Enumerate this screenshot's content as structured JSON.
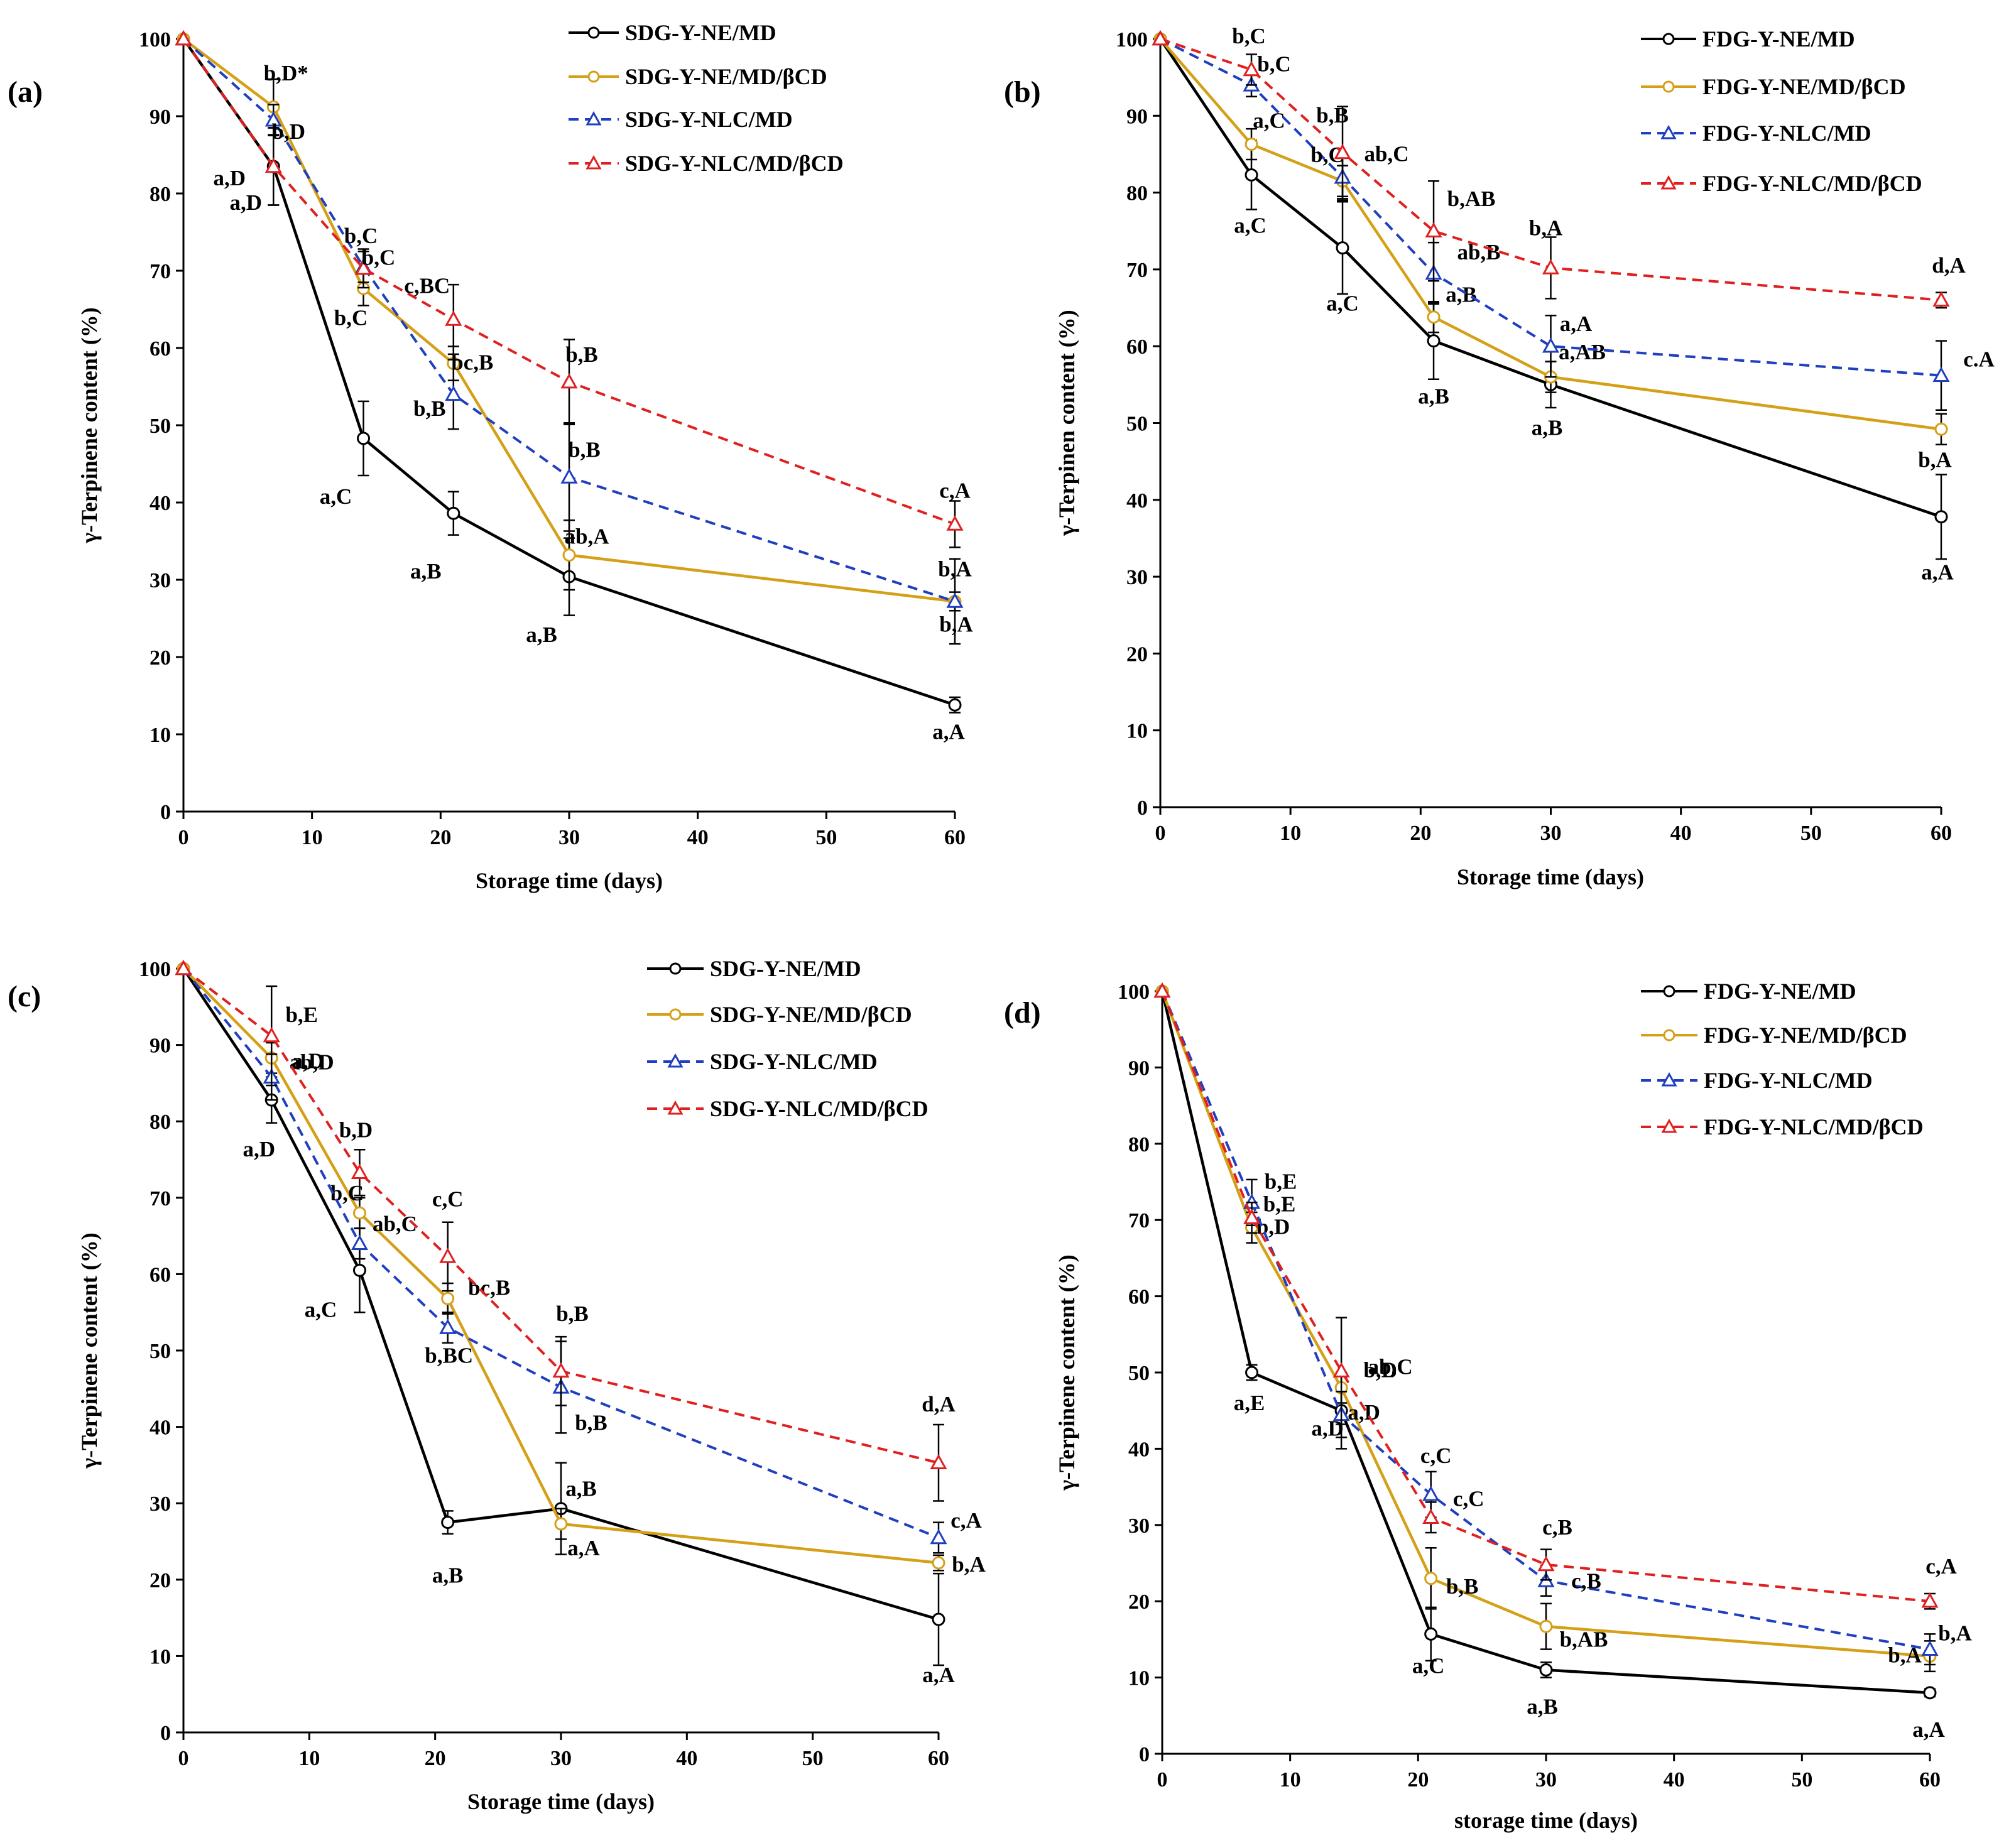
{
  "figure": {
    "chart_data": [
      {
        "type": "line",
        "panel_label": "(a)",
        "xlabel": "Storage time (days)",
        "ylabel": "γ-Terpinene content (%)",
        "xlim": [
          0,
          60
        ],
        "ylim": [
          0,
          100
        ],
        "xticks": [
          "0",
          "10",
          "20",
          "30",
          "40",
          "50",
          "60"
        ],
        "yticks": [
          "0",
          "10",
          "20",
          "30",
          "40",
          "50",
          "60",
          "70",
          "80",
          "90",
          "100"
        ],
        "x": [
          0,
          7,
          14,
          21,
          30,
          60
        ],
        "series": [
          {
            "name": "SDG-Y-NE/MD",
            "color": "#000000",
            "dash": false,
            "marker": "circle",
            "values": [
              100,
              83.5,
              48.3,
              38.6,
              30.4,
              13.8
            ],
            "errors": [
              0,
              5,
              4.8,
              2.8,
              5,
              1
            ],
            "labels": [
              "",
              "a,D",
              "a,C",
              "a,B",
              "a,B",
              "a,A"
            ]
          },
          {
            "name": "SDG-Y-NE/MD/βCD",
            "color": "#d4a017",
            "dash": false,
            "marker": "circle",
            "values": [
              100,
              91.2,
              67.7,
              58,
              33.2,
              27.2
            ],
            "errors": [
              0,
              3.6,
              2.2,
              2.2,
              4.5,
              1.2
            ],
            "labels": [
              "",
              "b,D*",
              "b,C",
              "bc,B",
              "ab,A",
              "b,A"
            ]
          },
          {
            "name": "SDG-Y-NLC/MD",
            "color": "#1f3fbf",
            "dash": true,
            "marker": "triangle",
            "values": [
              100,
              89.5,
              70.5,
              54,
              43.3,
              27.2
            ],
            "errors": [
              0,
              2,
              2,
              4.5,
              7,
              5.5
            ],
            "labels": [
              "",
              "b,D",
              "b,C",
              "b,B",
              "b,B",
              "b,A"
            ]
          },
          {
            "name": "SDG-Y-NLC/MD/βCD",
            "color": "#e02020",
            "dash": true,
            "marker": "triangle",
            "values": [
              100,
              83.5,
              70.3,
              63.7,
              55.6,
              37.2
            ],
            "errors": [
              0,
              5,
              2.5,
              4.5,
              5.5,
              3
            ],
            "labels": [
              "",
              "a,D",
              "b,C",
              "c,BC",
              "b,B",
              "c,A"
            ]
          }
        ]
      },
      {
        "type": "line",
        "panel_label": "(b)",
        "xlabel": "Storage time (days)",
        "ylabel": "γ-Terpinen content (%)",
        "xlim": [
          0,
          60
        ],
        "ylim": [
          0,
          100
        ],
        "xticks": [
          "0",
          "10",
          "20",
          "30",
          "40",
          "50",
          "60"
        ],
        "yticks": [
          "0",
          "10",
          "20",
          "30",
          "40",
          "50",
          "60",
          "70",
          "80",
          "90",
          "100"
        ],
        "x": [
          0,
          7,
          14,
          21,
          30,
          60
        ],
        "series": [
          {
            "name": "FDG-Y-NE/MD",
            "color": "#000000",
            "dash": false,
            "marker": "circle",
            "values": [
              100,
              82.3,
              72.8,
              60.7,
              55,
              37.8
            ],
            "errors": [
              0,
              4.5,
              6,
              5,
              3,
              5.5
            ],
            "labels": [
              "",
              "a,C",
              "a,C",
              "a,B",
              "a,B",
              "a,A"
            ]
          },
          {
            "name": "FDG-Y-NE/MD/βCD",
            "color": "#d4a017",
            "dash": false,
            "marker": "circle",
            "values": [
              100,
              86.3,
              81.5,
              63.8,
              56,
              49.2
            ],
            "errors": [
              0,
              2,
              2,
              2,
              2,
              2
            ],
            "labels": [
              "",
              "a,C",
              "ab,C",
              "a,B",
              "a,AB",
              "b,A"
            ]
          },
          {
            "name": "FDG-Y-NLC/MD",
            "color": "#1f3fbf",
            "dash": true,
            "marker": "triangle",
            "values": [
              100,
              94,
              82,
              69.5,
              60,
              56.2
            ],
            "errors": [
              0,
              1.5,
              3,
              4,
              4,
              4.5
            ],
            "labels": [
              "",
              "b,C",
              "b,C",
              "ab,B",
              "a,A",
              "c.A"
            ]
          },
          {
            "name": "FDG-Y-NLC/MD/βCD",
            "color": "#e02020",
            "dash": true,
            "marker": "triangle",
            "values": [
              100,
              96,
              85.2,
              75,
              70.2,
              66
            ],
            "errors": [
              0,
              2,
              6,
              6.5,
              4,
              1
            ],
            "labels": [
              "",
              "b,C",
              "b,B",
              "b,AB",
              "b,A",
              "d,A"
            ]
          }
        ]
      },
      {
        "type": "line",
        "panel_label": "(c)",
        "xlabel": "Storage time (days)",
        "ylabel": "γ-Terpinene content (%)",
        "xlim": [
          0,
          60
        ],
        "ylim": [
          0,
          100
        ],
        "xticks": [
          "0",
          "10",
          "20",
          "30",
          "40",
          "50",
          "60"
        ],
        "yticks": [
          "0",
          "10",
          "20",
          "30",
          "40",
          "50",
          "60",
          "70",
          "80",
          "90",
          "100"
        ],
        "x": [
          0,
          7,
          14,
          21,
          30,
          60
        ],
        "series": [
          {
            "name": "SDG-Y-NE/MD",
            "color": "#000000",
            "dash": false,
            "marker": "circle",
            "values": [
              100,
              82.8,
              60.5,
              27.5,
              29.3,
              14.8
            ],
            "errors": [
              0,
              3,
              5.5,
              1.5,
              6,
              6
            ],
            "labels": [
              "",
              "a,D",
              "a,C",
              "a,B",
              "a,B",
              "a,A"
            ]
          },
          {
            "name": "SDG-Y-NE/MD/βCD",
            "color": "#d4a017",
            "dash": false,
            "marker": "circle",
            "values": [
              100,
              88.3,
              68,
              56.8,
              27.3,
              22.2
            ],
            "errors": [
              0,
              2,
              2,
              2,
              2,
              1
            ],
            "labels": [
              "",
              "ab,D",
              "b,C",
              "bc,B",
              "a,A",
              "b,A"
            ]
          },
          {
            "name": "SDG-Y-NLC/MD",
            "color": "#1f3fbf",
            "dash": true,
            "marker": "triangle",
            "values": [
              100,
              85.8,
              64,
              53,
              45.2,
              25.5
            ],
            "errors": [
              0,
              3,
              2,
              2,
              6,
              2
            ],
            "labels": [
              "",
              "a,D",
              "ab,C",
              "b,BC",
              "b,B",
              "c,A"
            ]
          },
          {
            "name": "SDG-Y-NLC/MD/βCD",
            "color": "#e02020",
            "dash": true,
            "marker": "triangle",
            "values": [
              100,
              91.2,
              73.3,
              62.3,
              47.3,
              35.3
            ],
            "errors": [
              0,
              6.5,
              3,
              4.5,
              4.5,
              5
            ],
            "labels": [
              "",
              "b,E",
              "b,D",
              "c,C",
              "b,B",
              "d,A"
            ]
          }
        ]
      },
      {
        "type": "line",
        "panel_label": "(d)",
        "xlabel": "storage time (days)",
        "ylabel": "γ-Terpinene content (%)",
        "xlim": [
          0,
          60
        ],
        "ylim": [
          0,
          100
        ],
        "xticks": [
          "0",
          "10",
          "20",
          "30",
          "40",
          "50",
          "60"
        ],
        "yticks": [
          "0",
          "10",
          "20",
          "30",
          "40",
          "50",
          "60",
          "70",
          "80",
          "90",
          "100"
        ],
        "x": [
          0,
          7,
          14,
          21,
          30,
          60
        ],
        "series": [
          {
            "name": "FDG-Y-NE/MD",
            "color": "#000000",
            "dash": false,
            "marker": "circle",
            "values": [
              100,
              50,
              45,
              15.7,
              11,
              8
            ],
            "errors": [
              0,
              1,
              5,
              3.5,
              1,
              0.5
            ],
            "labels": [
              "",
              "a,E",
              "a,D",
              "a,C",
              "a,B",
              "a,A"
            ]
          },
          {
            "name": "FDG-Y-NE/MD/βCD",
            "color": "#d4a017",
            "dash": false,
            "marker": "circle",
            "values": [
              100,
              69,
              48,
              23,
              16.7,
              12.8
            ],
            "errors": [
              0,
              2,
              2,
              4,
              3,
              2
            ],
            "labels": [
              "",
              "b,D",
              "ab,C",
              "b,B",
              "b,AB",
              "b,A"
            ]
          },
          {
            "name": "FDG-Y-NLC/MD",
            "color": "#1f3fbf",
            "dash": true,
            "marker": "triangle",
            "values": [
              100,
              72.3,
              44.5,
              34,
              22.7,
              13.7
            ],
            "errors": [
              0,
              3,
              3,
              3,
              2,
              2
            ],
            "labels": [
              "",
              "b,E",
              "a,D",
              "c,C",
              "c,B",
              "b,A"
            ]
          },
          {
            "name": "FDG-Y-NLC/MD/βCD",
            "color": "#e02020",
            "dash": true,
            "marker": "triangle",
            "values": [
              100,
              70.3,
              50.2,
              31,
              24.8,
              20
            ],
            "errors": [
              0,
              2,
              7,
              2,
              2,
              1
            ],
            "labels": [
              "",
              "b,E",
              "b,D",
              "c,C",
              "c,B",
              "c,A"
            ]
          }
        ]
      }
    ]
  }
}
